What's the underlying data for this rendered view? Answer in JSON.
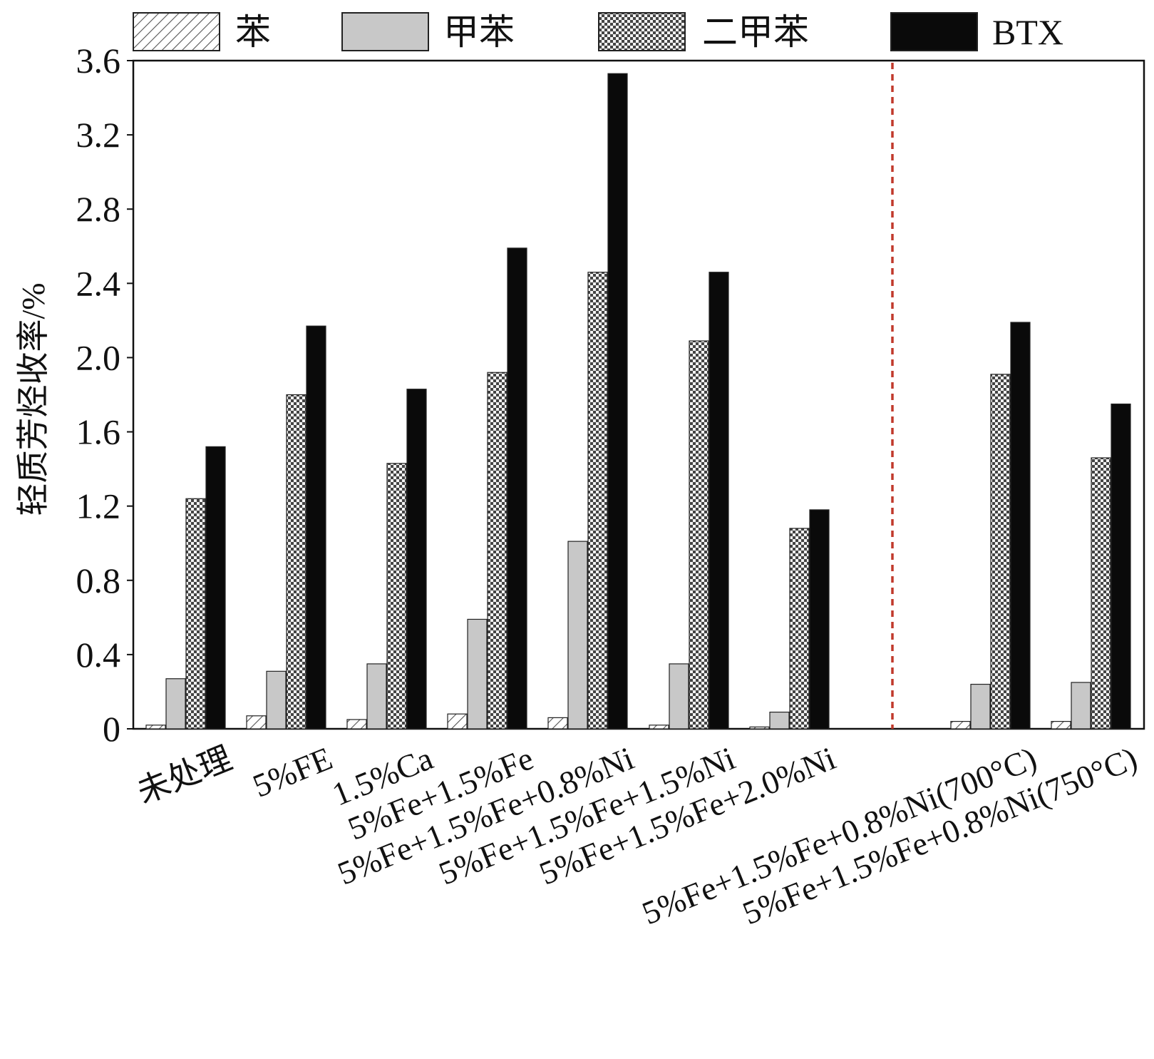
{
  "chart_data": {
    "type": "bar",
    "ylabel": "轻质芳烃收率/%",
    "xlabel": "",
    "ylim": [
      0,
      3.6
    ],
    "yticks": [
      "0",
      "0.4",
      "0.8",
      "1.2",
      "1.6",
      "2.0",
      "2.4",
      "2.8",
      "3.2",
      "3.6"
    ],
    "grid": false,
    "legend_position": "top",
    "categories": [
      "未处理",
      "5%FE",
      "1.5%Ca",
      "5%Fe+1.5%Fe",
      "5%Fe+1.5%Fe+0.8%Ni",
      "5%Fe+1.5%Fe+1.5%Ni",
      "5%Fe+1.5%Fe+2.0%Ni",
      "",
      "5%Fe+1.5%Fe+0.8%Ni(700°C)",
      "5%Fe+1.5%Fe+0.8%Ni(750°C)"
    ],
    "series": [
      {
        "name": "苯",
        "pattern": "hatch",
        "values": [
          0.02,
          0.07,
          0.05,
          0.08,
          0.06,
          0.02,
          0.01,
          null,
          0.04,
          0.04
        ]
      },
      {
        "name": "甲苯",
        "pattern": "light-gray",
        "values": [
          0.27,
          0.31,
          0.35,
          0.59,
          1.01,
          0.35,
          0.09,
          null,
          0.24,
          0.25
        ]
      },
      {
        "name": "二甲苯",
        "pattern": "checkered",
        "values": [
          1.24,
          1.8,
          1.43,
          1.92,
          2.46,
          2.09,
          1.08,
          null,
          1.91,
          1.46
        ]
      },
      {
        "name": "BTX",
        "pattern": "black",
        "values": [
          1.52,
          2.17,
          1.83,
          2.59,
          3.53,
          2.46,
          1.18,
          null,
          2.19,
          1.75
        ]
      }
    ],
    "separator_after_category_index": 7,
    "colors": {
      "hatch_fill": "#ffffff",
      "hatch_stroke": "#555555",
      "light_gray": "#c8c8c8",
      "checker_dark": "#444444",
      "checker_light": "#f2f2f2",
      "black": "#0a0a0a",
      "separator": "#c0392b"
    }
  }
}
